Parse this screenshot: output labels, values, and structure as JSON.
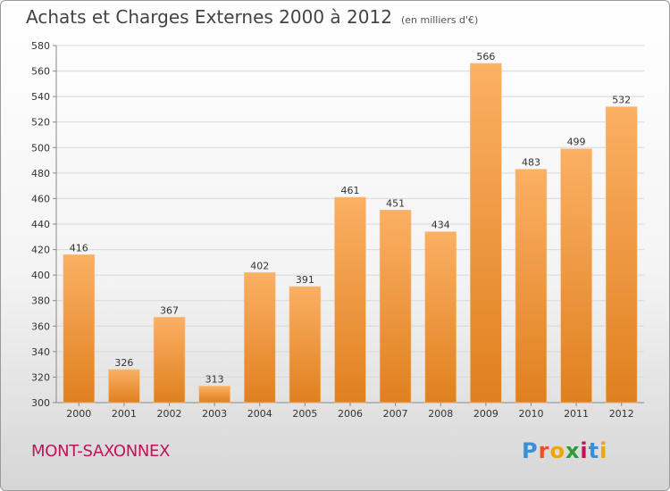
{
  "title": "Achats et Charges Externes 2000 à 2012",
  "subtitle": "(en milliers d'€)",
  "commune": "MONT-SAXONNEX",
  "brand": {
    "text": "Proxiti",
    "letter_colors": [
      "#3b8fd8",
      "#e8522a",
      "#f2a400",
      "#2a9d3a",
      "#c0135a",
      "#3b8fd8",
      "#f2a400"
    ]
  },
  "colors": {
    "bar_light": "#fbb064",
    "bar_dark": "#e0801f",
    "axis": "#888888",
    "grid": "#d8d8d8"
  },
  "chart_data": {
    "type": "bar",
    "categories": [
      "2000",
      "2001",
      "2002",
      "2003",
      "2004",
      "2005",
      "2006",
      "2007",
      "2008",
      "2009",
      "2010",
      "2011",
      "2012"
    ],
    "values": [
      416,
      326,
      367,
      313,
      402,
      391,
      461,
      451,
      434,
      566,
      483,
      499,
      532
    ],
    "ylim": [
      300,
      580
    ],
    "yticks": [
      300,
      320,
      340,
      360,
      380,
      400,
      420,
      440,
      460,
      480,
      500,
      520,
      540,
      560,
      580
    ],
    "grid": true
  }
}
